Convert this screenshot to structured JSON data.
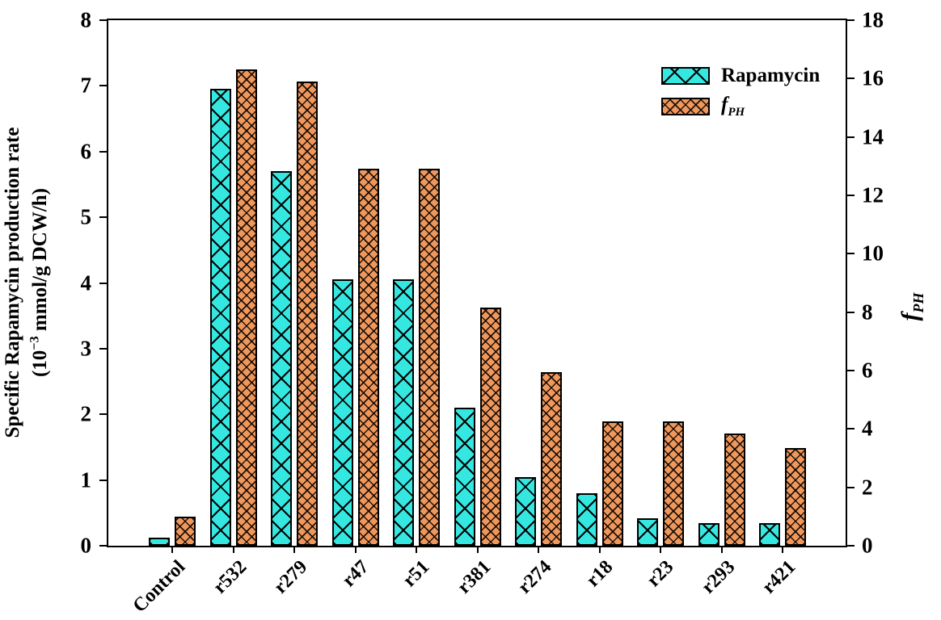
{
  "chart_data": {
    "type": "bar",
    "title": "",
    "categories": [
      "Control",
      "r532",
      "r279",
      "r47",
      "r51",
      "r381",
      "r274",
      "r18",
      "r23",
      "r293",
      "r421"
    ],
    "series": [
      {
        "name": "Rapamycin",
        "axis": "left",
        "color": "#35E7E1",
        "pattern": "coarse-diagonal-crosshatch",
        "values": [
          0.12,
          6.95,
          5.7,
          4.05,
          4.05,
          2.1,
          1.05,
          0.8,
          0.42,
          0.35,
          0.35
        ]
      },
      {
        "name": "fPH",
        "axis": "right",
        "color": "#F0975B",
        "pattern": "fine-diagonal-crosshatch",
        "values": [
          1.0,
          16.3,
          15.9,
          12.9,
          12.9,
          8.15,
          5.95,
          4.25,
          4.25,
          3.85,
          3.35
        ]
      }
    ],
    "left_axis": {
      "title_line1": "Specific Rapamycin production rate",
      "title_line2_prefix": "(10",
      "title_superscript": "−3",
      "title_line2_suffix": " mmol/g DCW/h)",
      "min": 0,
      "max": 8,
      "tick_step": 1,
      "tick_labels": [
        "0",
        "1",
        "2",
        "3",
        "4",
        "5",
        "6",
        "7",
        "8"
      ]
    },
    "right_axis": {
      "title_main": "f",
      "title_sub": "PH",
      "min": 0,
      "max": 18,
      "tick_step": 2,
      "tick_labels": [
        "0",
        "2",
        "4",
        "6",
        "8",
        "10",
        "12",
        "14",
        "16",
        "18"
      ]
    },
    "legend": {
      "position": "top-right-inside",
      "entries": [
        {
          "label": "Rapamycin",
          "swatch": "cyan-crosshatch"
        },
        {
          "label_main": "f",
          "label_sub": "PH",
          "swatch": "orange-crosshatch"
        }
      ]
    },
    "grid": "off"
  }
}
